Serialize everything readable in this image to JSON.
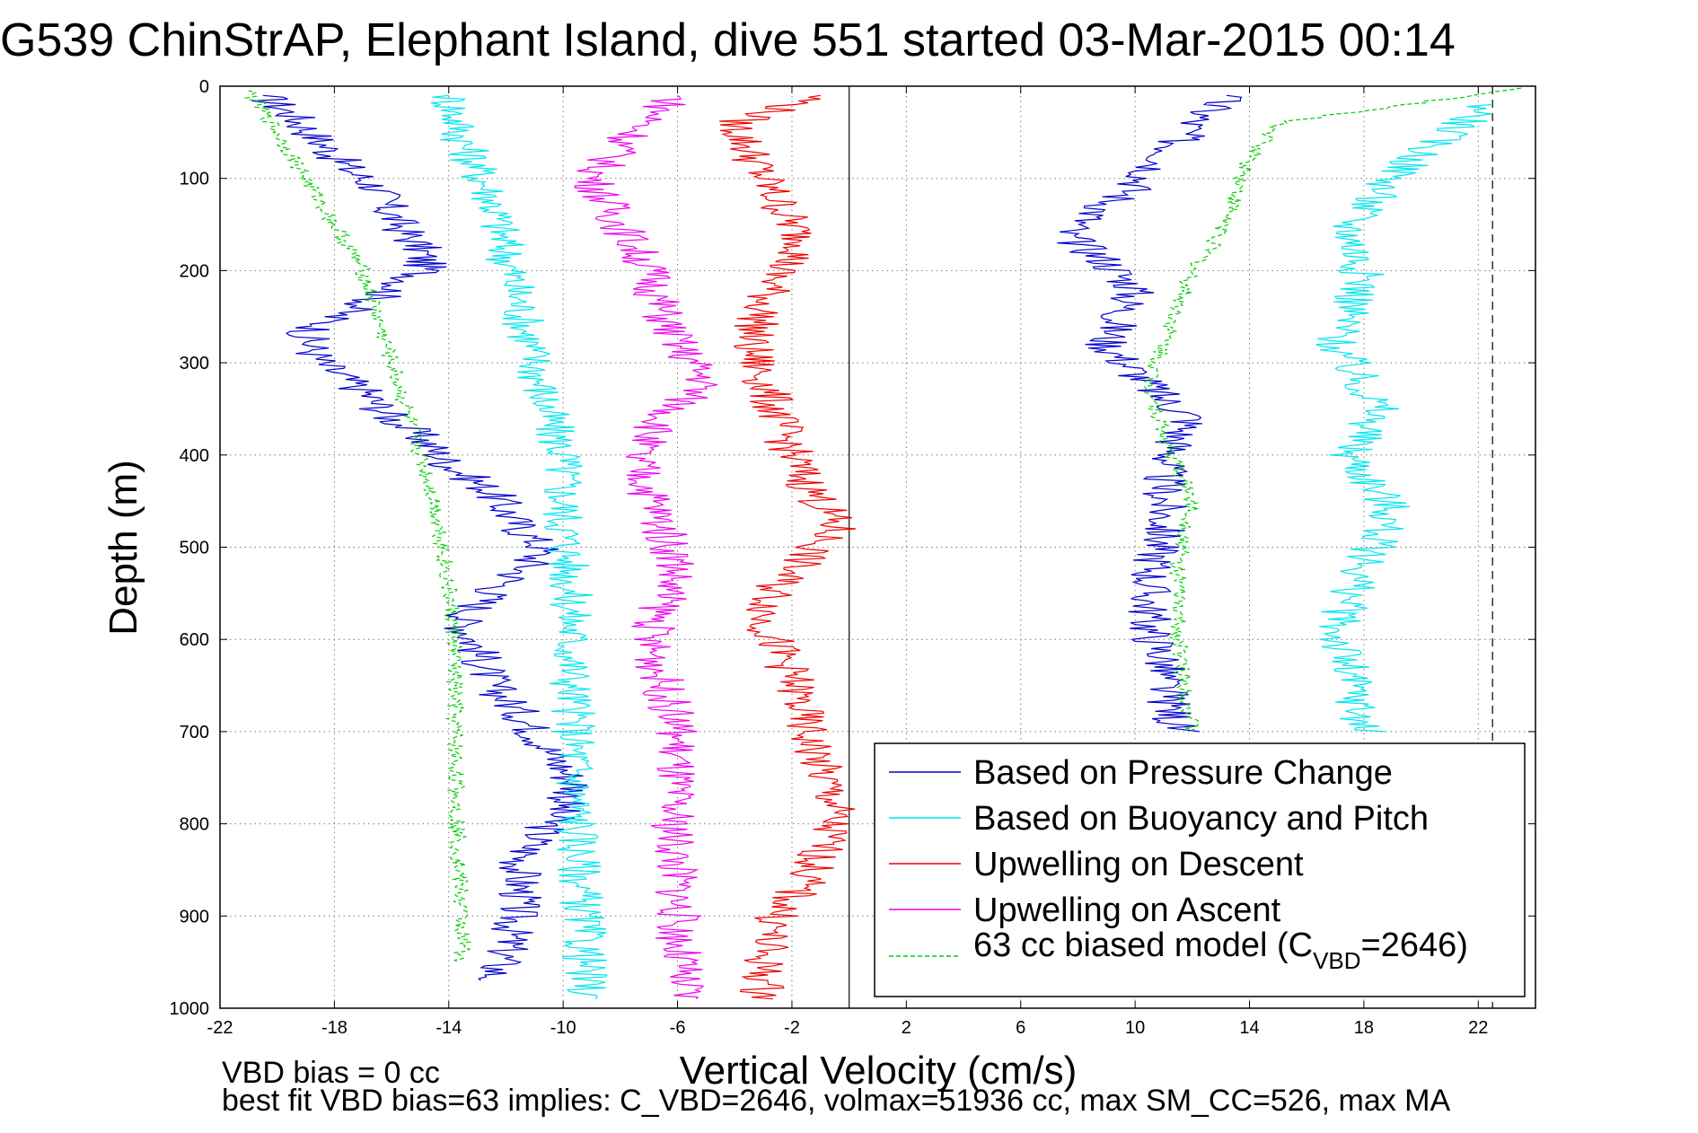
{
  "title": "G539 ChinStrAP, Elephant Island, dive 551 started 03-Mar-2015 00:14",
  "footer": {
    "line1": "VBD bias = 0 cc",
    "line2": "best fit VBD bias=63 implies: C_VBD=2646, volmax=51936 cc, max SM_CC=526, max MA"
  },
  "legend": {
    "placement": "bottom-right",
    "model_prefix": "63 cc biased model (C",
    "model_sub": "VBD",
    "model_suffix": "=2646)"
  },
  "colors": {
    "pressure": "#0000cc",
    "buoyancy": "#00e5ee",
    "descent": "#ee0000",
    "ascent": "#ee00ee",
    "model": "#00cc00"
  },
  "chart_data": {
    "type": "line",
    "title": "G539 ChinStrAP, Elephant Island, dive 551 started 03-Mar-2015 00:14",
    "xlabel": "Vertical Velocity (cm/s)",
    "ylabel": "Depth (m)",
    "xlim": [
      -22,
      24
    ],
    "ylim": [
      0,
      1000
    ],
    "y_reversed": true,
    "grid": true,
    "xticks": [
      -22,
      -18,
      -14,
      -10,
      -6,
      -2,
      2,
      6,
      10,
      14,
      18,
      22
    ],
    "yticks": [
      0,
      100,
      200,
      300,
      400,
      500,
      600,
      700,
      800,
      900,
      1000
    ],
    "reference_lines": [
      {
        "x": 0,
        "style": "solid"
      },
      {
        "x": 22.5,
        "style": "dashed"
      }
    ],
    "series": [
      {
        "name": "Based on Pressure Change",
        "key": "pressure",
        "style": "solid",
        "x": [
          -20.5,
          -19.5,
          -18.5,
          -17.5,
          -16.5,
          -16,
          -15.5,
          -15,
          -14.8,
          -16.5,
          -18,
          -19,
          -18.5,
          -17,
          -16,
          -15,
          -14,
          -12.5,
          -12,
          -11.5,
          -10.7,
          -11.2,
          -12.5,
          -13.5,
          -13,
          -12.5,
          -11.5,
          -10.5,
          -9.5,
          -10.5,
          -11.5,
          -11.5,
          -12,
          -12.5,
          13.2,
          12,
          11,
          10,
          8.5,
          7.5,
          9,
          10,
          9.5,
          9,
          10,
          11,
          12,
          11.5,
          11,
          11,
          10.5,
          10.5,
          11,
          11,
          11.5
        ],
        "y": [
          10,
          30,
          60,
          90,
          110,
          140,
          160,
          175,
          200,
          230,
          250,
          270,
          300,
          330,
          360,
          380,
          410,
          440,
          460,
          480,
          500,
          520,
          550,
          580,
          610,
          650,
          680,
          720,
          760,
          800,
          840,
          880,
          940,
          970,
          10,
          40,
          80,
          110,
          140,
          160,
          190,
          220,
          250,
          280,
          310,
          340,
          360,
          380,
          420,
          480,
          540,
          590,
          620,
          650,
          700
        ]
      },
      {
        "name": "Based on Buoyancy and Pitch",
        "key": "buoyancy",
        "style": "solid",
        "x": [
          -14,
          -13.5,
          -12.5,
          -12,
          -11.5,
          -11,
          -10.5,
          -10,
          -10,
          -9.8,
          -9.7,
          -9.7,
          -9.6,
          -9.5,
          -9.3,
          -9.2,
          22.5,
          20.5,
          19,
          17.5,
          18,
          17,
          18.5,
          17.5,
          19,
          18,
          17,
          17.5,
          18
        ],
        "y": [
          10,
          60,
          120,
          180,
          240,
          300,
          360,
          400,
          460,
          520,
          580,
          640,
          700,
          800,
          900,
          990,
          20,
          60,
          100,
          150,
          210,
          280,
          350,
          400,
          460,
          520,
          590,
          640,
          700
        ]
      },
      {
        "name": "Upwelling on Descent",
        "key": "descent",
        "style": "solid",
        "x": [
          -1,
          -4,
          -3,
          -2,
          -1.5,
          -2.5,
          -3,
          -3.5,
          -3,
          -2.5,
          -2,
          -1.5,
          -0.8,
          -0.5,
          -1.5,
          -2.5,
          -3,
          -2,
          -1.5,
          -1,
          -0.5,
          -0.8,
          -1.5,
          -2.5,
          -3,
          -3
        ],
        "y": [
          10,
          40,
          100,
          150,
          175,
          200,
          240,
          280,
          320,
          360,
          400,
          430,
          460,
          480,
          510,
          540,
          580,
          640,
          700,
          740,
          780,
          820,
          860,
          900,
          940,
          990
        ]
      },
      {
        "name": "Upwelling on Ascent",
        "key": "ascent",
        "style": "solid",
        "x": [
          -6,
          -7.5,
          -9,
          -8,
          -7,
          -6.5,
          -6,
          -5.5,
          -5,
          -6.5,
          -7.5,
          -7,
          -6.5,
          -6,
          -6.5,
          -7,
          -6.5,
          -6,
          -6.2,
          -6,
          -6,
          -5.8
        ],
        "y": [
          10,
          50,
          100,
          150,
          200,
          250,
          280,
          300,
          320,
          360,
          400,
          440,
          480,
          520,
          560,
          600,
          650,
          700,
          780,
          860,
          920,
          990
        ]
      },
      {
        "name": "63 cc biased model",
        "key": "model",
        "style": "dashed",
        "x": [
          -21,
          -20,
          -19,
          -18,
          -17,
          -16.5,
          -16,
          -15.5,
          -15,
          -14.5,
          -14.2,
          -14,
          -13.8,
          -13.8,
          -13.7,
          -13.5,
          23.5,
          15,
          14,
          13.5,
          13,
          12,
          11.5,
          11,
          10.5,
          11,
          12,
          11.5,
          11.5,
          12
        ],
        "y": [
          5,
          50,
          100,
          150,
          200,
          250,
          300,
          350,
          400,
          450,
          500,
          550,
          600,
          700,
          800,
          950,
          2,
          40,
          80,
          120,
          160,
          200,
          240,
          280,
          320,
          380,
          450,
          520,
          600,
          700
        ]
      }
    ]
  }
}
